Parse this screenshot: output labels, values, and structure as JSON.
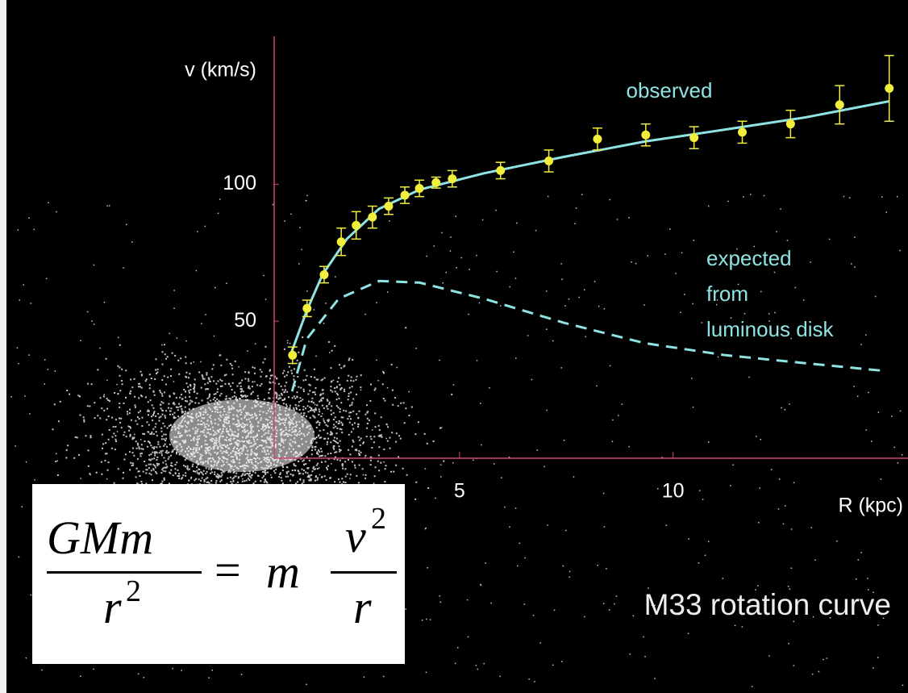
{
  "chart_data": {
    "type": "scatter",
    "xlabel": "R (kpc)",
    "ylabel": "v (km/s)",
    "xlim": [
      0.66,
      15.5
    ],
    "ylim": [
      0,
      154
    ],
    "xticks": [
      5,
      10
    ],
    "yticks": [
      50,
      100
    ],
    "axis_color": "#d2427c",
    "points": {
      "color": "#f2ee3c",
      "x": [
        1.09,
        1.43,
        1.83,
        2.23,
        2.58,
        2.96,
        3.34,
        3.72,
        4.06,
        4.45,
        4.83,
        5.96,
        7.09,
        8.23,
        9.36,
        10.49,
        11.62,
        12.75,
        13.9,
        15.06
      ],
      "values": [
        37.6,
        54.7,
        67,
        79,
        85,
        88,
        92,
        96,
        98.5,
        100.6,
        102,
        105,
        108.5,
        116.5,
        118,
        117,
        119,
        122,
        129,
        135
      ],
      "errors": [
        3,
        3,
        3,
        5,
        5,
        4,
        3,
        3,
        3,
        2,
        3,
        3,
        4,
        4,
        4,
        4,
        4,
        5,
        7,
        12
      ]
    },
    "series": [
      {
        "name": "observed",
        "color": "#8fe3e3",
        "dashed": false,
        "x": [
          1.04,
          1.42,
          1.79,
          2.36,
          3.11,
          4.06,
          5.57,
          7.45,
          9.34,
          11.23,
          13.1,
          15.06
        ],
        "values": [
          37.6,
          53.8,
          67,
          80,
          91,
          98,
          104,
          110,
          115.6,
          120,
          124.4,
          130.3
        ]
      },
      {
        "name_lines": [
          "expected",
          "from",
          "luminous disk"
        ],
        "color": "#8fe3e3",
        "dashed": true,
        "x": [
          1.08,
          1.42,
          2.17,
          3.11,
          4.06,
          5.57,
          7.45,
          9.34,
          11.23,
          13.1,
          15.0
        ],
        "values": [
          24.4,
          43.5,
          58.2,
          64.7,
          64.1,
          58.2,
          49.4,
          42,
          37.6,
          34.7,
          31.8
        ]
      }
    ],
    "caption": "M33 rotation curve",
    "formula": {
      "lhs_num": "GMm",
      "lhs_den_base": "r",
      "lhs_den_exp": "2",
      "eq": "=",
      "rhs_coef": "m",
      "rhs_num_base": "v",
      "rhs_num_exp": "2",
      "rhs_den": "r"
    }
  }
}
